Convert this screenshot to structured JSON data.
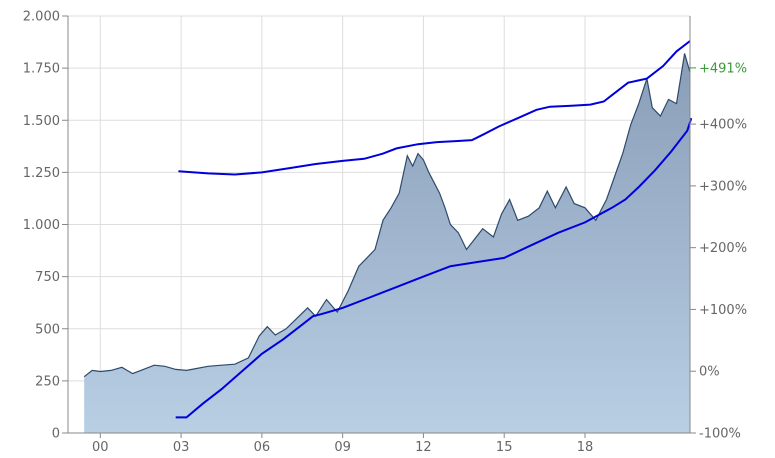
{
  "chart_data": {
    "type": "area",
    "title": "",
    "xlabel": "",
    "ylabel": "",
    "x_ticks": [
      "00",
      "03",
      "06",
      "09",
      "12",
      "15",
      "18"
    ],
    "x_tick_years": [
      2000,
      2003,
      2006,
      2009,
      2012,
      2015,
      2018
    ],
    "xlim": [
      1998.8,
      2021.9
    ],
    "ylim": [
      0,
      2000
    ],
    "y_ticks": [
      {
        "value": 0,
        "label": "0"
      },
      {
        "value": 250,
        "label": "250"
      },
      {
        "value": 500,
        "label": "500"
      },
      {
        "value": 750,
        "label": "750"
      },
      {
        "value": 1000,
        "label": "1.000"
      },
      {
        "value": 1250,
        "label": "1.250"
      },
      {
        "value": 1500,
        "label": "1.500"
      },
      {
        "value": 1750,
        "label": "1.750"
      },
      {
        "value": 2000,
        "label": "2.000"
      }
    ],
    "y2lim": [
      -100,
      575
    ],
    "y2_ticks": [
      {
        "value": -100,
        "label": "-100%"
      },
      {
        "value": 0,
        "label": "0%"
      },
      {
        "value": 100,
        "label": "+100%"
      },
      {
        "value": 200,
        "label": "+200%"
      },
      {
        "value": 300,
        "label": "+300%"
      },
      {
        "value": 400,
        "label": "+400%"
      }
    ],
    "current_change": {
      "value": 491,
      "label": "+491%",
      "color": "#3a9a3a"
    },
    "grid": true,
    "colors": {
      "area_fill_top": "#8a9db8",
      "area_fill_bottom": "#b8cfe4",
      "area_line": "#2d4a6b",
      "trend": "#0000dd",
      "grid": "#dddddd"
    },
    "series": [
      {
        "kind": "area",
        "points": [
          [
            1999.4,
            270
          ],
          [
            1999.7,
            300
          ],
          [
            2000.0,
            295
          ],
          [
            2000.4,
            300
          ],
          [
            2000.8,
            315
          ],
          [
            2001.2,
            285
          ],
          [
            2001.6,
            305
          ],
          [
            2002.0,
            325
          ],
          [
            2002.4,
            320
          ],
          [
            2002.8,
            305
          ],
          [
            2003.2,
            300
          ],
          [
            2003.6,
            310
          ],
          [
            2004.0,
            320
          ],
          [
            2004.5,
            325
          ],
          [
            2005.0,
            330
          ],
          [
            2005.5,
            360
          ],
          [
            2005.9,
            465
          ],
          [
            2006.2,
            510
          ],
          [
            2006.5,
            470
          ],
          [
            2006.9,
            500
          ],
          [
            2007.3,
            550
          ],
          [
            2007.7,
            600
          ],
          [
            2008.0,
            560
          ],
          [
            2008.4,
            640
          ],
          [
            2008.8,
            580
          ],
          [
            2009.2,
            680
          ],
          [
            2009.6,
            800
          ],
          [
            2009.9,
            840
          ],
          [
            2010.2,
            880
          ],
          [
            2010.5,
            1020
          ],
          [
            2010.8,
            1080
          ],
          [
            2011.1,
            1150
          ],
          [
            2011.4,
            1330
          ],
          [
            2011.6,
            1280
          ],
          [
            2011.8,
            1340
          ],
          [
            2012.0,
            1310
          ],
          [
            2012.2,
            1250
          ],
          [
            2012.4,
            1200
          ],
          [
            2012.6,
            1150
          ],
          [
            2012.8,
            1080
          ],
          [
            2013.0,
            1000
          ],
          [
            2013.3,
            960
          ],
          [
            2013.6,
            880
          ],
          [
            2013.9,
            930
          ],
          [
            2014.2,
            980
          ],
          [
            2014.6,
            940
          ],
          [
            2014.9,
            1050
          ],
          [
            2015.2,
            1120
          ],
          [
            2015.5,
            1020
          ],
          [
            2015.9,
            1040
          ],
          [
            2016.3,
            1080
          ],
          [
            2016.6,
            1160
          ],
          [
            2016.9,
            1080
          ],
          [
            2017.3,
            1180
          ],
          [
            2017.6,
            1100
          ],
          [
            2018.0,
            1080
          ],
          [
            2018.4,
            1020
          ],
          [
            2018.8,
            1120
          ],
          [
            2019.1,
            1230
          ],
          [
            2019.4,
            1340
          ],
          [
            2019.7,
            1480
          ],
          [
            2020.0,
            1580
          ],
          [
            2020.3,
            1700
          ],
          [
            2020.5,
            1560
          ],
          [
            2020.8,
            1520
          ],
          [
            2021.1,
            1600
          ],
          [
            2021.4,
            1580
          ],
          [
            2021.7,
            1820
          ],
          [
            2021.9,
            1730
          ]
        ]
      },
      {
        "kind": "trend-upper",
        "points": [
          [
            2002.9,
            1255
          ],
          [
            2004.0,
            1245
          ],
          [
            2005.0,
            1240
          ],
          [
            2006.0,
            1250
          ],
          [
            2007.0,
            1270
          ],
          [
            2008.0,
            1290
          ],
          [
            2009.0,
            1305
          ],
          [
            2009.8,
            1315
          ],
          [
            2010.5,
            1340
          ],
          [
            2011.0,
            1365
          ],
          [
            2011.8,
            1385
          ],
          [
            2012.5,
            1395
          ],
          [
            2013.2,
            1400
          ],
          [
            2013.8,
            1405
          ],
          [
            2014.2,
            1430
          ],
          [
            2014.8,
            1470
          ],
          [
            2015.5,
            1510
          ],
          [
            2016.2,
            1550
          ],
          [
            2016.7,
            1565
          ],
          [
            2017.5,
            1570
          ],
          [
            2018.2,
            1575
          ],
          [
            2018.7,
            1590
          ],
          [
            2019.0,
            1620
          ],
          [
            2019.6,
            1680
          ],
          [
            2020.3,
            1700
          ],
          [
            2020.9,
            1760
          ],
          [
            2021.4,
            1830
          ],
          [
            2021.9,
            1880
          ]
        ]
      },
      {
        "kind": "trend-lower",
        "points": [
          [
            2002.8,
            75
          ],
          [
            2003.2,
            75
          ],
          [
            2003.8,
            140
          ],
          [
            2004.5,
            210
          ],
          [
            2005.3,
            300
          ],
          [
            2006.0,
            380
          ],
          [
            2006.8,
            450
          ],
          [
            2007.5,
            520
          ],
          [
            2007.9,
            560
          ],
          [
            2008.2,
            570
          ],
          [
            2009.0,
            600
          ],
          [
            2010.0,
            650
          ],
          [
            2011.0,
            700
          ],
          [
            2012.0,
            750
          ],
          [
            2013.0,
            800
          ],
          [
            2014.0,
            820
          ],
          [
            2015.0,
            840
          ],
          [
            2016.0,
            900
          ],
          [
            2017.0,
            960
          ],
          [
            2018.0,
            1010
          ],
          [
            2019.0,
            1080
          ],
          [
            2019.5,
            1120
          ],
          [
            2020.0,
            1180
          ],
          [
            2020.6,
            1260
          ],
          [
            2021.2,
            1350
          ],
          [
            2021.8,
            1450
          ],
          [
            2021.95,
            1510
          ]
        ]
      }
    ]
  }
}
